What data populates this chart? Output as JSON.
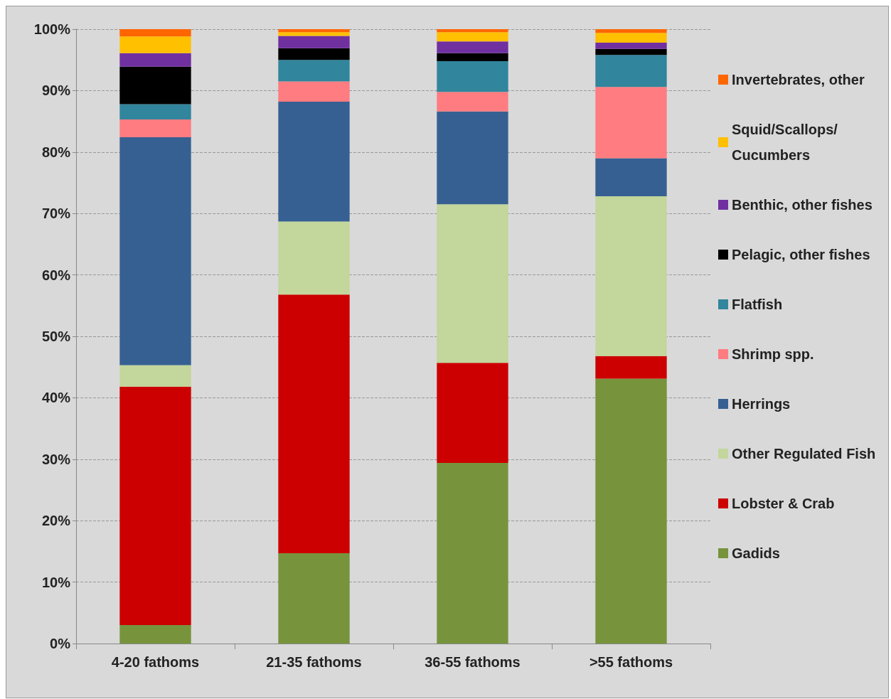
{
  "chart_data": {
    "type": "bar",
    "stacked": true,
    "categories": [
      "4-20 fathoms",
      "21-35 fathoms",
      "36-55 fathoms",
      ">55 fathoms"
    ],
    "series": [
      {
        "name": "Gadids",
        "color": "#77933c",
        "values": [
          3,
          14.7,
          29.4,
          43.1
        ]
      },
      {
        "name": "Lobster & Crab",
        "color": "#cc0000",
        "values": [
          38.8,
          42.1,
          16.3,
          3.7
        ]
      },
      {
        "name": "Other Regulated Fish",
        "color": "#c3d69b",
        "values": [
          3.5,
          11.9,
          25.8,
          26.0
        ]
      },
      {
        "name": "Herrings",
        "color": "#376092",
        "values": [
          37.1,
          19.5,
          15.1,
          6.2
        ]
      },
      {
        "name": "Shrimp spp.",
        "color": "#ff7c80",
        "values": [
          2.9,
          3.3,
          3.2,
          11.6
        ]
      },
      {
        "name": "Flatfish",
        "color": "#31859c",
        "values": [
          2.5,
          3.5,
          5.0,
          5.2
        ]
      },
      {
        "name": "Pelagic, other fishes",
        "color": "#000000",
        "values": [
          6.1,
          1.9,
          1.3,
          1.0
        ]
      },
      {
        "name": "Benthic, other fishes",
        "color": "#7030a0",
        "values": [
          2.2,
          2.0,
          1.9,
          1.0
        ]
      },
      {
        "name": "Squid/Scallops/ Cucumbers",
        "color": "#ffc000",
        "values": [
          2.7,
          0.6,
          1.5,
          1.6
        ]
      },
      {
        "name": "Invertebrates, other",
        "color": "#ff6600",
        "values": [
          1.2,
          0.5,
          0.5,
          0.6
        ]
      }
    ],
    "ylim": [
      0,
      100
    ],
    "yticks": [
      {
        "value": 0,
        "label": "0%"
      },
      {
        "value": 10,
        "label": "10%"
      },
      {
        "value": 20,
        "label": "20%"
      },
      {
        "value": 30,
        "label": "30%"
      },
      {
        "value": 40,
        "label": "40%"
      },
      {
        "value": 50,
        "label": "50%"
      },
      {
        "value": 60,
        "label": "60%"
      },
      {
        "value": 70,
        "label": "70%"
      },
      {
        "value": 80,
        "label": "80%"
      },
      {
        "value": 90,
        "label": "90%"
      },
      {
        "value": 100,
        "label": "100%"
      }
    ],
    "grid": "y",
    "legend": "right"
  }
}
